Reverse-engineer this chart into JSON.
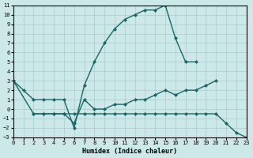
{
  "xlabel": "Humidex (Indice chaleur)",
  "bg_color": "#cce8e8",
  "grid_color": "#aacccc",
  "line_color": "#1a6666",
  "xlim": [
    0,
    23
  ],
  "ylim": [
    -3,
    11
  ],
  "xticks": [
    0,
    1,
    2,
    3,
    4,
    5,
    6,
    7,
    8,
    9,
    10,
    11,
    12,
    13,
    14,
    15,
    16,
    17,
    18,
    19,
    20,
    21,
    22,
    23
  ],
  "yticks": [
    -3,
    -2,
    -1,
    0,
    1,
    2,
    3,
    4,
    5,
    6,
    7,
    8,
    9,
    10,
    11
  ],
  "line1_x": [
    0,
    1,
    2,
    3,
    4,
    5,
    6,
    7,
    8,
    9,
    10,
    11,
    12,
    13,
    14,
    15,
    16,
    17,
    18
  ],
  "line1_y": [
    3,
    2,
    1,
    1,
    1,
    1,
    -2,
    2.5,
    5,
    7,
    8.5,
    9.5,
    10,
    10.5,
    10.5,
    11,
    7.5,
    5,
    5
  ],
  "line2_x": [
    0,
    2,
    3,
    4,
    5,
    6,
    7,
    8,
    9,
    10,
    11,
    12,
    13,
    14,
    15,
    16,
    17,
    18,
    19,
    20,
    21,
    22,
    23
  ],
  "line2_y": [
    3,
    -0.5,
    -0.5,
    -0.5,
    -0.5,
    -0.5,
    -0.5,
    -0.5,
    -0.5,
    -0.5,
    -0.5,
    -0.5,
    -0.5,
    -0.5,
    -0.5,
    -0.5,
    -0.5,
    -0.5,
    -0.5,
    -0.5,
    -1.5,
    -2.5,
    -3
  ],
  "line3_x": [
    2,
    3,
    4,
    5,
    6,
    7,
    8,
    9,
    10,
    11,
    12,
    13,
    14,
    15,
    16,
    17,
    18,
    19,
    20
  ],
  "line3_y": [
    -0.5,
    -0.5,
    -0.5,
    -0.5,
    -1.5,
    1,
    0,
    0,
    0.5,
    0.5,
    1,
    1,
    1.5,
    2,
    1.5,
    2,
    2,
    2.5,
    3
  ]
}
